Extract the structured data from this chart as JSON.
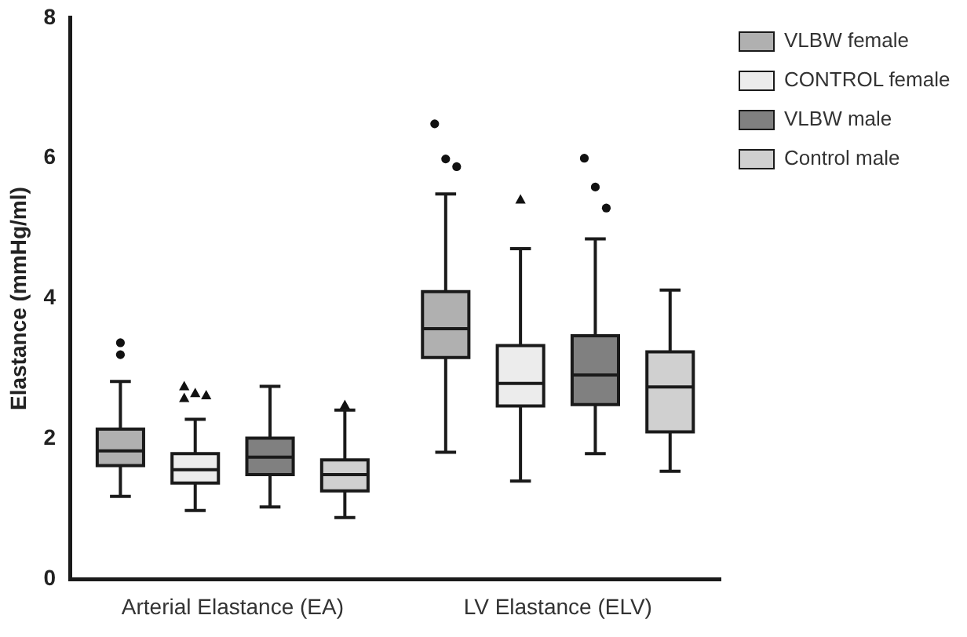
{
  "chart_data": {
    "type": "box",
    "ylabel": "Elastance (mmHg/ml)",
    "categories": [
      "Arterial Elastance (EA)",
      "LV Elastance (ELV)"
    ],
    "ylim": [
      0,
      8
    ],
    "yticks": [
      0,
      2,
      4,
      6,
      8
    ],
    "grid": false,
    "legend": "top right",
    "series": [
      {
        "name": "VLBW female",
        "color": "#b0b0b0",
        "marker": "circle",
        "boxes": [
          {
            "low": 1.18,
            "q1": 1.62,
            "median": 1.83,
            "q3": 2.14,
            "high": 2.82,
            "outliers": [
              3.37,
              3.2
            ]
          },
          {
            "low": 1.81,
            "q1": 3.16,
            "median": 3.57,
            "q3": 4.1,
            "high": 5.49,
            "outliers": [
              6.49,
              5.99,
              5.88
            ]
          }
        ]
      },
      {
        "name": "CONTROL female",
        "color": "#ececec",
        "marker": "triangle",
        "boxes": [
          {
            "low": 0.98,
            "q1": 1.37,
            "median": 1.56,
            "q3": 1.79,
            "high": 2.28,
            "outliers": [
              2.75,
              2.65,
              2.62,
              2.58
            ]
          },
          {
            "low": 1.4,
            "q1": 2.47,
            "median": 2.79,
            "q3": 3.33,
            "high": 4.71,
            "outliers": [
              5.41
            ]
          }
        ]
      },
      {
        "name": "VLBW male",
        "color": "#808080",
        "marker": "circle",
        "boxes": [
          {
            "low": 1.03,
            "q1": 1.49,
            "median": 1.74,
            "q3": 2.01,
            "high": 2.75
          },
          {
            "low": 1.79,
            "q1": 2.49,
            "median": 2.91,
            "q3": 3.47,
            "high": 4.85,
            "outliers": [
              6.0,
              5.59,
              5.29
            ]
          }
        ]
      },
      {
        "name": "Control male",
        "color": "#d0d0d0",
        "marker": "triangle",
        "boxes": [
          {
            "low": 0.88,
            "q1": 1.26,
            "median": 1.49,
            "q3": 1.7,
            "high": 2.41,
            "outliers": [
              2.48
            ]
          },
          {
            "low": 1.54,
            "q1": 2.1,
            "median": 2.74,
            "q3": 3.24,
            "high": 4.12
          }
        ]
      }
    ]
  }
}
